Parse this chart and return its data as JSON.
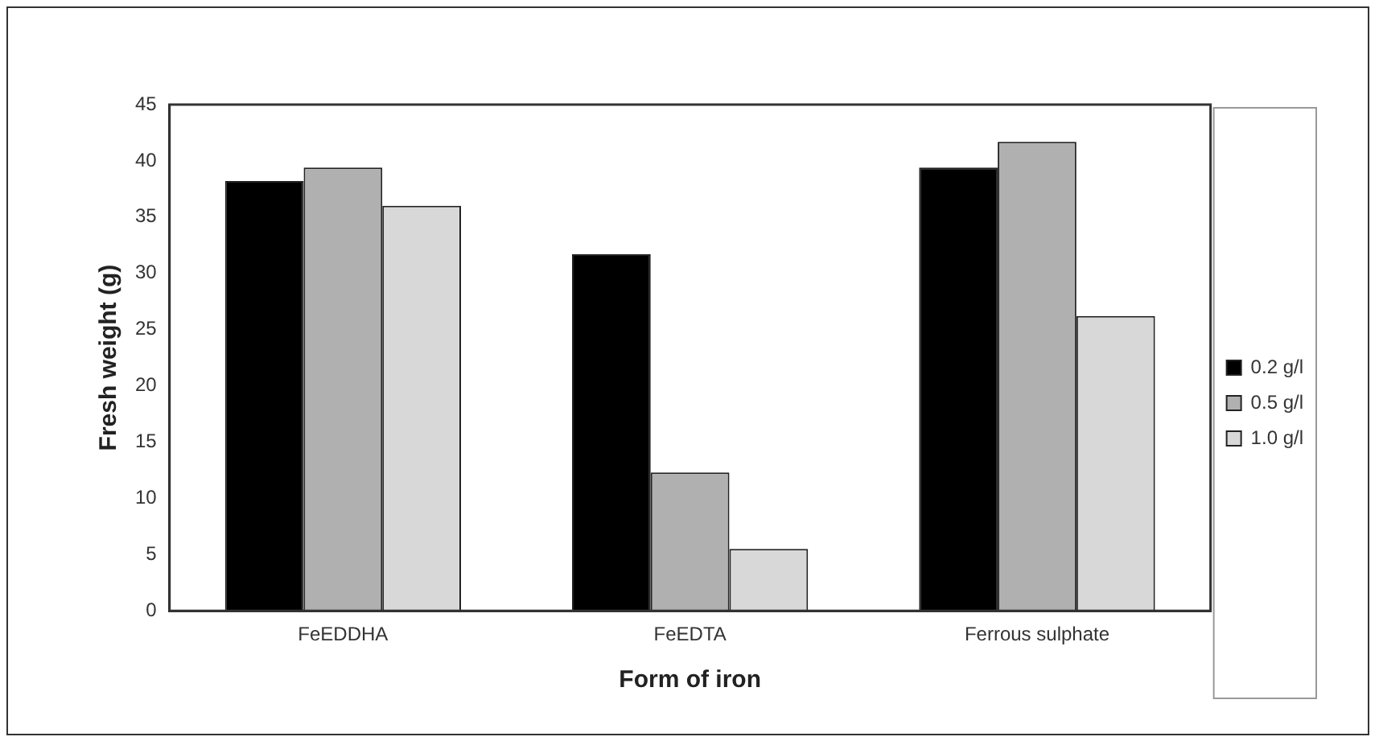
{
  "chart_data": {
    "type": "bar",
    "xlabel": "Form of iron",
    "ylabel": "Fresh weight (g)",
    "categories": [
      "FeEDDHA",
      "FeEDTA",
      "Ferrous sulphate"
    ],
    "series": [
      {
        "name": "0.2 g/l",
        "color": "#000000",
        "values": [
          38.2,
          31.7,
          39.4
        ]
      },
      {
        "name": "0.5 g/l",
        "color": "#b0b0b0",
        "values": [
          39.4,
          12.3,
          41.7
        ]
      },
      {
        "name": "1.0 g/l",
        "color": "#d8d8d8",
        "values": [
          36.0,
          5.5,
          26.2
        ]
      }
    ],
    "ylim": [
      0,
      45
    ],
    "yticks": [
      0,
      5,
      10,
      15,
      20,
      25,
      30,
      35,
      40,
      45
    ],
    "grid": false,
    "legend": "right"
  }
}
